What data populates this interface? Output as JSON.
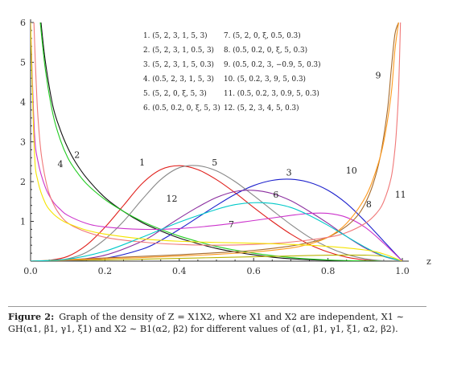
{
  "caption": {
    "label": "Figure 2:",
    "text": "Graph of the density of Z = X1X2, where X1 and X2 are independent, X1 ∼ GH(α1, β1, γ1, ξ1) and X2 ∼ B1(α2, β2) for different values of (α1, β1, γ1, ξ1, α2, β2)."
  },
  "chart_data": {
    "type": "line",
    "xlabel": "z",
    "ylabel": "",
    "xlim": [
      0,
      1
    ],
    "ylim": [
      0,
      6
    ],
    "x_ticks": [
      "0.0",
      "0.2",
      "0.4",
      "0.6",
      "0.8",
      "1.0"
    ],
    "y_ticks": [
      "1",
      "2",
      "3",
      "4",
      "5",
      "6"
    ],
    "grid": false,
    "legend_placement": "top-center",
    "legend": [
      "1. (5, 2, 3, 1, 5, 3)",
      "2. (5, 2, 3, 1, 0.5, 3)",
      "3. (5, 2, 3, 1, 5, 0.3)",
      "4. (0.5, 2, 3, 1, 5, 3)",
      "5. (5, 2, 0, ξ, 5, 3)",
      "6. (0.5, 0.2, 0, ξ, 5, 3)",
      "7. (5, 2, 0, ξ, 0.5, 0.3)",
      "8. (0.5, 0.2, 0, ξ, 5, 0.3)",
      "9. (0.5, 0.2, 3, −0.9, 5, 0.3)",
      "10. (5, 0.2, 3, 9, 5, 0.3)",
      "11. (0.5, 0.2, 3, 0.9, 5, 0.3)",
      "12. (5, 2, 3, 4, 5, 0.3)"
    ],
    "series": [
      {
        "name": "1",
        "color": "#e0201c",
        "x": [
          0.0,
          0.05,
          0.1,
          0.15,
          0.2,
          0.25,
          0.3,
          0.35,
          0.4,
          0.45,
          0.5,
          0.55,
          0.6,
          0.65,
          0.7,
          0.75,
          0.8,
          0.85,
          0.9,
          0.95,
          1.0
        ],
        "y": [
          0,
          0.02,
          0.12,
          0.4,
          0.85,
          1.4,
          1.95,
          2.3,
          2.4,
          2.3,
          2.05,
          1.72,
          1.35,
          1.0,
          0.68,
          0.42,
          0.23,
          0.1,
          0.03,
          0.005,
          0
        ]
      },
      {
        "name": "2",
        "color": "#111111",
        "x": [
          0.028,
          0.04,
          0.06,
          0.08,
          0.1,
          0.12,
          0.15,
          0.2,
          0.25,
          0.3,
          0.35,
          0.4,
          0.45,
          0.5,
          0.55,
          0.6,
          0.65,
          0.7,
          0.8,
          0.9,
          0.95,
          1.0
        ],
        "y": [
          6,
          5.0,
          3.9,
          3.3,
          2.85,
          2.5,
          2.1,
          1.6,
          1.25,
          0.97,
          0.76,
          0.58,
          0.44,
          0.32,
          0.23,
          0.16,
          0.1,
          0.06,
          0.02,
          0.005,
          0.001,
          0
        ]
      },
      {
        "name": "3",
        "color": "#1b1fcc",
        "x": [
          0.0,
          0.1,
          0.2,
          0.3,
          0.35,
          0.4,
          0.45,
          0.5,
          0.55,
          0.6,
          0.65,
          0.7,
          0.75,
          0.8,
          0.85,
          0.9,
          0.95,
          1.0
        ],
        "y": [
          0,
          0.01,
          0.07,
          0.3,
          0.52,
          0.8,
          1.1,
          1.4,
          1.68,
          1.9,
          2.03,
          2.06,
          1.98,
          1.78,
          1.45,
          1.0,
          0.5,
          0
        ]
      },
      {
        "name": "4",
        "color": "#22cc22",
        "x": [
          0.026,
          0.04,
          0.06,
          0.08,
          0.1,
          0.12,
          0.15,
          0.2,
          0.25,
          0.3,
          0.35,
          0.4,
          0.5,
          0.6,
          0.7,
          0.8,
          0.9,
          1.0
        ],
        "y": [
          6,
          4.8,
          3.7,
          3.05,
          2.6,
          2.3,
          1.95,
          1.55,
          1.25,
          1.0,
          0.8,
          0.63,
          0.37,
          0.2,
          0.09,
          0.03,
          0.005,
          0
        ]
      },
      {
        "name": "5",
        "color": "#888888",
        "x": [
          0.0,
          0.05,
          0.1,
          0.15,
          0.2,
          0.25,
          0.3,
          0.35,
          0.4,
          0.45,
          0.5,
          0.55,
          0.6,
          0.65,
          0.7,
          0.75,
          0.8,
          0.85,
          0.9,
          0.95,
          1.0
        ],
        "y": [
          0,
          0.01,
          0.06,
          0.22,
          0.55,
          1.0,
          1.55,
          2.05,
          2.35,
          2.4,
          2.27,
          2.0,
          1.65,
          1.28,
          0.92,
          0.6,
          0.35,
          0.17,
          0.06,
          0.01,
          0
        ]
      },
      {
        "name": "6",
        "color": "#8a2c9e",
        "x": [
          0.0,
          0.1,
          0.2,
          0.3,
          0.35,
          0.4,
          0.45,
          0.5,
          0.55,
          0.6,
          0.65,
          0.7,
          0.75,
          0.8,
          0.85,
          0.9,
          0.95,
          1.0
        ],
        "y": [
          0,
          0.02,
          0.15,
          0.5,
          0.78,
          1.08,
          1.36,
          1.6,
          1.75,
          1.78,
          1.7,
          1.52,
          1.25,
          0.95,
          0.62,
          0.33,
          0.12,
          0
        ]
      },
      {
        "name": "7",
        "color": "#b8b400",
        "x": [
          0.0,
          0.1,
          0.2,
          0.3,
          0.4,
          0.5,
          0.6,
          0.7,
          0.8,
          0.9,
          0.95,
          1.0
        ],
        "y": [
          0,
          0.02,
          0.03,
          0.05,
          0.07,
          0.09,
          0.11,
          0.13,
          0.15,
          0.15,
          0.12,
          0
        ]
      },
      {
        "name": "8",
        "color": "#cc33cc",
        "x": [
          0.0,
          0.01,
          0.02,
          0.04,
          0.06,
          0.08,
          0.1,
          0.15,
          0.2,
          0.3,
          0.4,
          0.5,
          0.6,
          0.7,
          0.75,
          0.8,
          0.85,
          0.9,
          0.95,
          1.0
        ],
        "y": [
          6,
          3.3,
          2.5,
          1.85,
          1.5,
          1.3,
          1.15,
          0.95,
          0.86,
          0.8,
          0.82,
          0.9,
          1.02,
          1.15,
          1.2,
          1.2,
          1.1,
          0.85,
          0.45,
          0
        ]
      },
      {
        "name": "9",
        "color": "#a66a2a",
        "x": [
          0.0,
          0.1,
          0.2,
          0.3,
          0.4,
          0.5,
          0.6,
          0.7,
          0.75,
          0.8,
          0.85,
          0.88,
          0.9,
          0.92,
          0.94,
          0.96,
          0.97,
          0.98,
          0.99
        ],
        "y": [
          0,
          0.04,
          0.08,
          0.12,
          0.16,
          0.21,
          0.27,
          0.38,
          0.47,
          0.6,
          0.88,
          1.15,
          1.45,
          1.9,
          2.6,
          3.8,
          4.8,
          5.7,
          6
        ]
      },
      {
        "name": "10",
        "color": "#ff9a1e",
        "x": [
          0.0,
          0.1,
          0.2,
          0.3,
          0.4,
          0.5,
          0.6,
          0.7,
          0.75,
          0.8,
          0.85,
          0.9,
          0.93,
          0.95,
          0.97,
          0.98,
          0.99
        ],
        "y": [
          0,
          0.03,
          0.06,
          0.09,
          0.13,
          0.17,
          0.23,
          0.33,
          0.43,
          0.6,
          0.95,
          1.6,
          2.3,
          3.0,
          4.2,
          5.3,
          6
        ]
      },
      {
        "name": "11",
        "color": "#f07878",
        "x": [
          0.009,
          0.012,
          0.015,
          0.02,
          0.03,
          0.05,
          0.08,
          0.12,
          0.2,
          0.3,
          0.4,
          0.5,
          0.6,
          0.7,
          0.8,
          0.85,
          0.9,
          0.93,
          0.95,
          0.97,
          0.98,
          0.985,
          0.99,
          0.995
        ],
        "y": [
          6,
          5.2,
          4.5,
          3.6,
          2.6,
          1.7,
          1.15,
          0.85,
          0.6,
          0.48,
          0.42,
          0.4,
          0.42,
          0.48,
          0.6,
          0.72,
          0.95,
          1.2,
          1.5,
          2.1,
          2.8,
          3.4,
          4.3,
          6
        ]
      },
      {
        "name": "12",
        "color": "#00c9c9",
        "x": [
          0.0,
          0.1,
          0.2,
          0.3,
          0.4,
          0.5,
          0.55,
          0.6,
          0.65,
          0.7,
          0.75,
          0.8,
          0.85,
          0.9,
          0.95,
          1.0
        ],
        "y": [
          0,
          0.05,
          0.25,
          0.6,
          0.98,
          1.3,
          1.42,
          1.47,
          1.45,
          1.35,
          1.15,
          0.9,
          0.62,
          0.35,
          0.13,
          0
        ]
      },
      {
        "name": "yellow",
        "color": "#f5e400",
        "x": [
          0.0,
          0.01,
          0.02,
          0.04,
          0.06,
          0.08,
          0.1,
          0.15,
          0.2,
          0.3,
          0.4,
          0.5,
          0.6,
          0.7,
          0.8,
          0.9,
          0.95,
          1.0
        ],
        "y": [
          6,
          2.8,
          2.0,
          1.45,
          1.2,
          1.05,
          0.95,
          0.78,
          0.68,
          0.56,
          0.5,
          0.47,
          0.45,
          0.42,
          0.37,
          0.28,
          0.18,
          0
        ]
      }
    ],
    "curve_labels": [
      {
        "text": "1",
        "x": 0.3,
        "y": 2.4
      },
      {
        "text": "2",
        "x": 0.125,
        "y": 2.6
      },
      {
        "text": "3",
        "x": 0.695,
        "y": 2.15
      },
      {
        "text": "4",
        "x": 0.08,
        "y": 2.36
      },
      {
        "text": "5",
        "x": 0.495,
        "y": 2.4
      },
      {
        "text": "6",
        "x": 0.66,
        "y": 1.6
      },
      {
        "text": "7",
        "x": 0.54,
        "y": 0.85
      },
      {
        "text": "8",
        "x": 0.91,
        "y": 1.35
      },
      {
        "text": "9",
        "x": 0.935,
        "y": 4.6
      },
      {
        "text": "10",
        "x": 0.863,
        "y": 2.2
      },
      {
        "text": "11",
        "x": 0.995,
        "y": 1.6
      },
      {
        "text": "12",
        "x": 0.38,
        "y": 1.5
      }
    ]
  }
}
